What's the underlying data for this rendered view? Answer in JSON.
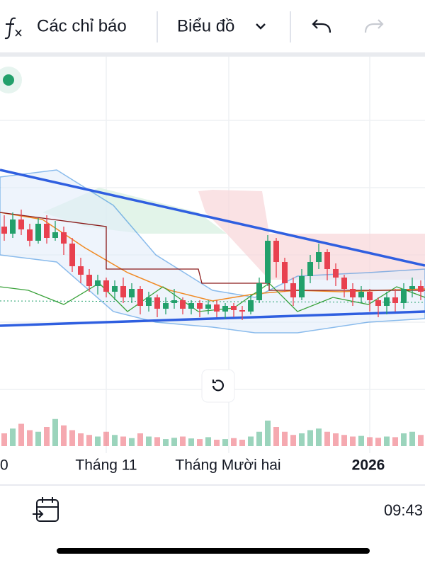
{
  "toolbar": {
    "indicators": "Các chỉ báo",
    "chart": "Biểu đồ"
  },
  "chart": {
    "type": "candlestick",
    "up_color": "#22a06b",
    "down_color": "#e8414f",
    "ylim": [
      0,
      100
    ],
    "volume_lim": [
      0,
      100
    ],
    "open": [
      80,
      75,
      85,
      78,
      70,
      82,
      72,
      76,
      68,
      52,
      46,
      38,
      42,
      34,
      38,
      30,
      36,
      24,
      30,
      22,
      26,
      28,
      22,
      26,
      22,
      25,
      20,
      24,
      21,
      20,
      28,
      40,
      70,
      55,
      40,
      30,
      45,
      55,
      62,
      50,
      44,
      36,
      30,
      34,
      28,
      24,
      30,
      26,
      36,
      38
    ],
    "high": [
      88,
      90,
      92,
      82,
      86,
      88,
      84,
      80,
      72,
      58,
      50,
      46,
      44,
      42,
      44,
      40,
      38,
      34,
      32,
      30,
      36,
      30,
      28,
      28,
      28,
      28,
      26,
      26,
      24,
      32,
      44,
      74,
      72,
      58,
      44,
      50,
      60,
      68,
      64,
      54,
      46,
      40,
      38,
      36,
      30,
      34,
      36,
      40,
      44,
      42
    ],
    "low": [
      70,
      72,
      74,
      66,
      68,
      68,
      70,
      60,
      48,
      40,
      34,
      32,
      30,
      28,
      26,
      26,
      18,
      20,
      16,
      18,
      22,
      18,
      18,
      16,
      18,
      16,
      15,
      16,
      14,
      18,
      26,
      38,
      44,
      34,
      24,
      28,
      40,
      50,
      42,
      38,
      30,
      24,
      26,
      20,
      16,
      18,
      20,
      22,
      30,
      28
    ],
    "close": [
      75,
      85,
      78,
      70,
      82,
      72,
      76,
      68,
      52,
      46,
      38,
      42,
      34,
      38,
      30,
      36,
      24,
      30,
      22,
      26,
      28,
      22,
      26,
      22,
      25,
      20,
      24,
      21,
      20,
      28,
      40,
      70,
      55,
      40,
      30,
      45,
      55,
      62,
      50,
      44,
      36,
      30,
      34,
      28,
      24,
      30,
      26,
      36,
      38,
      34
    ],
    "volume": [
      40,
      55,
      70,
      50,
      45,
      60,
      85,
      65,
      50,
      40,
      35,
      30,
      45,
      35,
      30,
      25,
      40,
      30,
      28,
      22,
      26,
      30,
      24,
      22,
      28,
      20,
      22,
      25,
      20,
      30,
      45,
      80,
      60,
      45,
      35,
      40,
      50,
      55,
      45,
      40,
      35,
      30,
      32,
      28,
      26,
      30,
      28,
      40,
      45,
      35
    ],
    "x_labels": [
      "0",
      "Tháng 11",
      "Tháng Mười hai",
      "2026"
    ]
  },
  "status": {
    "time": "09:43"
  }
}
